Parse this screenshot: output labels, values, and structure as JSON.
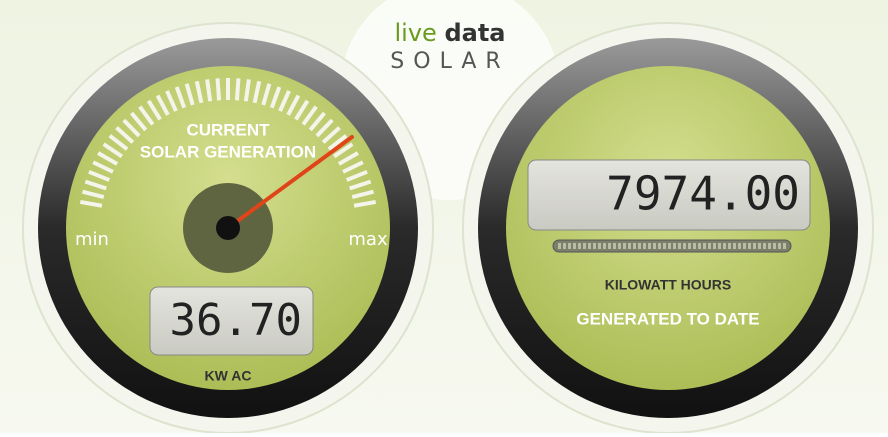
{
  "header": {
    "live": "live",
    "data": "data",
    "brand": "SOLAR"
  },
  "gauge": {
    "title_line1": "CURRENT",
    "title_line2": "SOLAR GENERATION",
    "min": "min",
    "max": "max",
    "reading": "36.70",
    "unit": "KW AC"
  },
  "counter": {
    "reading": "7974.00",
    "label1": "KILOWATT HOURS",
    "label2": "GENERATED TO DATE"
  }
}
